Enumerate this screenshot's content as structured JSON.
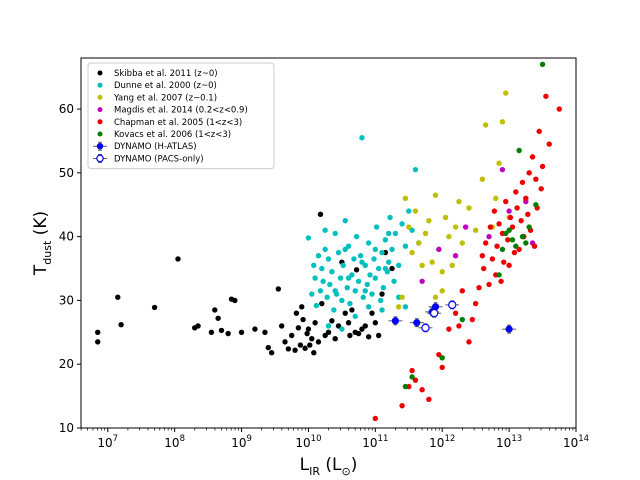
{
  "chart_data": {
    "type": "scatter",
    "title": "",
    "xlabel": "L_IR (L_⊙)",
    "ylabel": "T_dust (K)",
    "xscale": "log",
    "xlim_log10": [
      6.6,
      14.0
    ],
    "ylim": [
      10,
      68
    ],
    "x_ticks": [
      {
        "exp": 7,
        "label_base": "10",
        "label_exp": "7"
      },
      {
        "exp": 8,
        "label_base": "10",
        "label_exp": "8"
      },
      {
        "exp": 9,
        "label_base": "10",
        "label_exp": "9"
      },
      {
        "exp": 10,
        "label_base": "10",
        "label_exp": "10"
      },
      {
        "exp": 11,
        "label_base": "10",
        "label_exp": "11"
      },
      {
        "exp": 12,
        "label_base": "10",
        "label_exp": "12"
      },
      {
        "exp": 13,
        "label_base": "10",
        "label_exp": "13"
      },
      {
        "exp": 14,
        "label_base": "10",
        "label_exp": "14"
      }
    ],
    "y_ticks": [
      10,
      20,
      30,
      40,
      50,
      60
    ],
    "axis_labels": {
      "x_main": "L",
      "x_sub": "IR",
      "x_unit": " (L",
      "x_unit_sub": "⊙",
      "x_close": ")",
      "y_main": "T",
      "y_sub": "dust",
      "y_unit": " (K)"
    },
    "legend_position": "top-left",
    "series": [
      {
        "name": "Skibba et al. 2011 (z~0)",
        "color": "#000000",
        "marker": "filled-circle",
        "points": [
          [
            6.85,
            25.0
          ],
          [
            6.85,
            23.5
          ],
          [
            7.15,
            30.5
          ],
          [
            7.2,
            26.2
          ],
          [
            7.7,
            28.9
          ],
          [
            8.05,
            36.5
          ],
          [
            8.3,
            25.7
          ],
          [
            8.35,
            26.0
          ],
          [
            8.55,
            25.0
          ],
          [
            8.6,
            28.5
          ],
          [
            8.65,
            27.2
          ],
          [
            8.7,
            25.3
          ],
          [
            8.8,
            24.8
          ],
          [
            8.85,
            30.2
          ],
          [
            8.9,
            30.0
          ],
          [
            9.0,
            25.0
          ],
          [
            9.2,
            25.5
          ],
          [
            9.35,
            25.0
          ],
          [
            9.4,
            22.6
          ],
          [
            9.45,
            21.8
          ],
          [
            9.55,
            31.8
          ],
          [
            9.6,
            26.0
          ],
          [
            9.65,
            23.5
          ],
          [
            9.7,
            22.4
          ],
          [
            9.75,
            24.5
          ],
          [
            9.8,
            22.2
          ],
          [
            9.82,
            28.0
          ],
          [
            9.85,
            25.7
          ],
          [
            9.88,
            23.0
          ],
          [
            9.9,
            29.0
          ],
          [
            9.92,
            27.0
          ],
          [
            9.95,
            22.5
          ],
          [
            9.98,
            24.8
          ],
          [
            10.0,
            25.5
          ],
          [
            10.02,
            23.0
          ],
          [
            10.05,
            24.0
          ],
          [
            10.08,
            21.8
          ],
          [
            10.1,
            26.5
          ],
          [
            10.15,
            23.5
          ],
          [
            10.18,
            43.5
          ],
          [
            10.2,
            29.5
          ],
          [
            10.25,
            24.5
          ],
          [
            10.3,
            25.0
          ],
          [
            10.35,
            26.8
          ],
          [
            10.4,
            24.0
          ],
          [
            10.45,
            26.0
          ],
          [
            10.5,
            36.0
          ],
          [
            10.55,
            28.0
          ],
          [
            10.6,
            26.5
          ],
          [
            10.62,
            24.5
          ],
          [
            10.65,
            28.5
          ],
          [
            10.7,
            25.0
          ],
          [
            10.72,
            34.8
          ],
          [
            10.75,
            24.8
          ],
          [
            10.8,
            25.5
          ],
          [
            10.85,
            26.0
          ],
          [
            10.9,
            24.3
          ],
          [
            10.95,
            28.0
          ],
          [
            11.0,
            26.5
          ],
          [
            11.05,
            24.5
          ],
          [
            11.1,
            31.0
          ],
          [
            11.15,
            37.5
          ],
          [
            11.25,
            35.0
          ]
        ]
      },
      {
        "name": "Dunne et al. 2000 (z~0)",
        "color": "#00bfbf",
        "marker": "filled-circle",
        "points": [
          [
            10.0,
            39.8
          ],
          [
            10.05,
            31.0
          ],
          [
            10.08,
            35.5
          ],
          [
            10.1,
            33.5
          ],
          [
            10.12,
            29.2
          ],
          [
            10.15,
            37.0
          ],
          [
            10.18,
            31.5
          ],
          [
            10.2,
            35.0
          ],
          [
            10.22,
            33.0
          ],
          [
            10.25,
            38.0
          ],
          [
            10.28,
            30.5
          ],
          [
            10.3,
            36.5
          ],
          [
            10.32,
            32.5
          ],
          [
            10.35,
            34.5
          ],
          [
            10.38,
            28.5
          ],
          [
            10.4,
            40.5
          ],
          [
            10.42,
            31.0
          ],
          [
            10.45,
            37.5
          ],
          [
            10.48,
            33.5
          ],
          [
            10.5,
            30.0
          ],
          [
            10.52,
            35.5
          ],
          [
            10.55,
            42.5
          ],
          [
            10.58,
            32.0
          ],
          [
            10.6,
            38.5
          ],
          [
            10.62,
            29.5
          ],
          [
            10.65,
            34.0
          ],
          [
            10.68,
            36.5
          ],
          [
            10.7,
            31.5
          ],
          [
            10.72,
            40.0
          ],
          [
            10.75,
            33.0
          ],
          [
            10.78,
            37.0
          ],
          [
            10.8,
            55.5
          ],
          [
            10.82,
            30.5
          ],
          [
            10.85,
            35.5
          ],
          [
            10.88,
            32.5
          ],
          [
            10.9,
            39.0
          ],
          [
            10.92,
            34.0
          ],
          [
            10.95,
            31.0
          ],
          [
            10.98,
            36.5
          ],
          [
            11.0,
            33.5
          ],
          [
            11.02,
            41.5
          ],
          [
            11.05,
            35.0
          ],
          [
            11.08,
            30.0
          ],
          [
            11.1,
            37.5
          ],
          [
            11.12,
            32.0
          ],
          [
            11.15,
            39.5
          ],
          [
            11.18,
            34.5
          ],
          [
            11.2,
            36.0
          ],
          [
            11.22,
            43.0
          ],
          [
            11.25,
            38.0
          ],
          [
            11.28,
            33.0
          ],
          [
            11.3,
            40.5
          ],
          [
            11.35,
            35.5
          ],
          [
            11.4,
            42.0
          ],
          [
            11.45,
            38.5
          ],
          [
            11.5,
            44.0
          ],
          [
            11.55,
            41.0
          ],
          [
            11.6,
            50.5
          ],
          [
            11.65,
            39.0
          ],
          [
            10.3,
            26.0
          ],
          [
            10.5,
            25.5
          ],
          [
            10.7,
            27.5
          ],
          [
            10.9,
            29.0
          ],
          [
            11.1,
            28.5
          ],
          [
            10.4,
            31.5
          ],
          [
            10.6,
            33.5
          ],
          [
            10.8,
            36.0
          ],
          [
            11.0,
            38.0
          ],
          [
            11.2,
            40.5
          ],
          [
            10.25,
            41.0
          ],
          [
            10.55,
            38.0
          ],
          [
            10.85,
            31.5
          ],
          [
            11.15,
            35.0
          ],
          [
            11.35,
            30.5
          ],
          [
            11.45,
            29.0
          ]
        ]
      },
      {
        "name": "Yang et al. 2007 (z~0.1)",
        "color": "#bfbf00",
        "marker": "filled-circle",
        "points": [
          [
            11.35,
            29.0
          ],
          [
            11.4,
            30.5
          ],
          [
            11.45,
            46.0
          ],
          [
            11.5,
            41.5
          ],
          [
            11.55,
            37.5
          ],
          [
            11.6,
            44.0
          ],
          [
            11.65,
            39.0
          ],
          [
            11.7,
            35.5
          ],
          [
            11.75,
            40.5
          ],
          [
            11.8,
            42.5
          ],
          [
            11.85,
            36.0
          ],
          [
            11.9,
            46.5
          ],
          [
            11.95,
            38.0
          ],
          [
            12.0,
            34.5
          ],
          [
            12.05,
            43.0
          ],
          [
            12.1,
            40.0
          ],
          [
            12.15,
            35.5
          ],
          [
            12.2,
            41.5
          ],
          [
            12.25,
            45.5
          ],
          [
            12.3,
            39.0
          ],
          [
            12.4,
            44.5
          ],
          [
            12.5,
            41.0
          ],
          [
            12.6,
            49.0
          ],
          [
            12.65,
            57.5
          ],
          [
            12.75,
            41.5
          ],
          [
            12.85,
            51.5
          ],
          [
            12.9,
            58.0
          ],
          [
            12.95,
            62.5
          ],
          [
            12.8,
            46.0
          ],
          [
            13.0,
            43.0
          ],
          [
            11.9,
            30.5
          ],
          [
            12.0,
            31.5
          ]
        ]
      },
      {
        "name": "Magdis et al. 2014 (0.2<z<0.9)",
        "color": "#bf00bf",
        "marker": "filled-circle",
        "points": [
          [
            11.7,
            33.0
          ],
          [
            11.95,
            38.0
          ],
          [
            12.2,
            37.0
          ],
          [
            12.35,
            41.5
          ],
          [
            12.7,
            40.0
          ],
          [
            12.9,
            50.5
          ],
          [
            13.0,
            44.0
          ],
          [
            13.25,
            45.5
          ],
          [
            13.35,
            39.0
          ]
        ]
      },
      {
        "name": "Chapman et al. 2005 (1<z<3)",
        "color": "#ee0000",
        "marker": "filled-circle",
        "points": [
          [
            11.0,
            11.5
          ],
          [
            11.4,
            13.5
          ],
          [
            11.5,
            16.5
          ],
          [
            11.55,
            19.0
          ],
          [
            11.6,
            17.5
          ],
          [
            11.7,
            16.0
          ],
          [
            11.8,
            14.5
          ],
          [
            11.95,
            21.5
          ],
          [
            12.0,
            19.5
          ],
          [
            12.1,
            25.5
          ],
          [
            12.2,
            28.0
          ],
          [
            12.25,
            26.0
          ],
          [
            12.4,
            23.5
          ],
          [
            12.5,
            29.5
          ],
          [
            12.55,
            32.0
          ],
          [
            12.6,
            37.0
          ],
          [
            12.62,
            35.0
          ],
          [
            12.65,
            39.0
          ],
          [
            12.7,
            32.5
          ],
          [
            12.72,
            41.5
          ],
          [
            12.75,
            36.5
          ],
          [
            12.78,
            44.0
          ],
          [
            12.8,
            34.0
          ],
          [
            12.82,
            38.5
          ],
          [
            12.85,
            42.0
          ],
          [
            12.88,
            33.0
          ],
          [
            12.9,
            40.5
          ],
          [
            12.92,
            36.0
          ],
          [
            12.95,
            45.5
          ],
          [
            12.98,
            39.5
          ],
          [
            13.0,
            35.5
          ],
          [
            13.02,
            43.0
          ],
          [
            13.05,
            41.5
          ],
          [
            13.08,
            37.5
          ],
          [
            13.1,
            47.0
          ],
          [
            13.12,
            44.5
          ],
          [
            13.15,
            38.0
          ],
          [
            13.18,
            42.5
          ],
          [
            13.2,
            48.5
          ],
          [
            13.22,
            40.0
          ],
          [
            13.25,
            46.0
          ],
          [
            13.28,
            43.5
          ],
          [
            13.3,
            50.0
          ],
          [
            13.32,
            41.0
          ],
          [
            13.35,
            52.5
          ],
          [
            13.4,
            49.0
          ],
          [
            13.45,
            56.5
          ],
          [
            13.5,
            51.0
          ],
          [
            13.55,
            62.0
          ],
          [
            13.6,
            54.5
          ],
          [
            13.75,
            60.0
          ],
          [
            12.3,
            31.5
          ],
          [
            12.45,
            27.0
          ],
          [
            13.42,
            44.5
          ],
          [
            13.48,
            47.5
          ],
          [
            13.38,
            38.5
          ]
        ]
      },
      {
        "name": "Kovacs et al. 2006 (1<z<3)",
        "color": "#007f00",
        "marker": "filled-circle",
        "points": [
          [
            11.45,
            16.5
          ],
          [
            11.55,
            18.0
          ],
          [
            12.0,
            21.0
          ],
          [
            12.3,
            27.0
          ],
          [
            12.85,
            34.0
          ],
          [
            12.9,
            38.0
          ],
          [
            12.95,
            40.5
          ],
          [
            13.0,
            41.0
          ],
          [
            13.05,
            39.5
          ],
          [
            13.1,
            38.5
          ],
          [
            13.15,
            53.5
          ],
          [
            13.2,
            40.0
          ],
          [
            13.25,
            39.0
          ],
          [
            13.3,
            41.5
          ],
          [
            13.4,
            45.0
          ],
          [
            13.5,
            67.0
          ]
        ]
      },
      {
        "name": "DYNAMO (H-ATLAS)",
        "color": "#0000ff",
        "marker": "filled-circle-errorbar",
        "points": [
          [
            11.3,
            26.8
          ],
          [
            11.62,
            26.5
          ],
          [
            11.85,
            28.2
          ],
          [
            11.9,
            29.0
          ],
          [
            13.0,
            25.5
          ]
        ]
      },
      {
        "name": "DYNAMO (PACS-only)",
        "color": "#0000ff",
        "marker": "open-circle-errorbar",
        "points": [
          [
            11.75,
            25.7
          ],
          [
            11.88,
            28.0
          ],
          [
            12.15,
            29.3
          ]
        ]
      }
    ]
  }
}
